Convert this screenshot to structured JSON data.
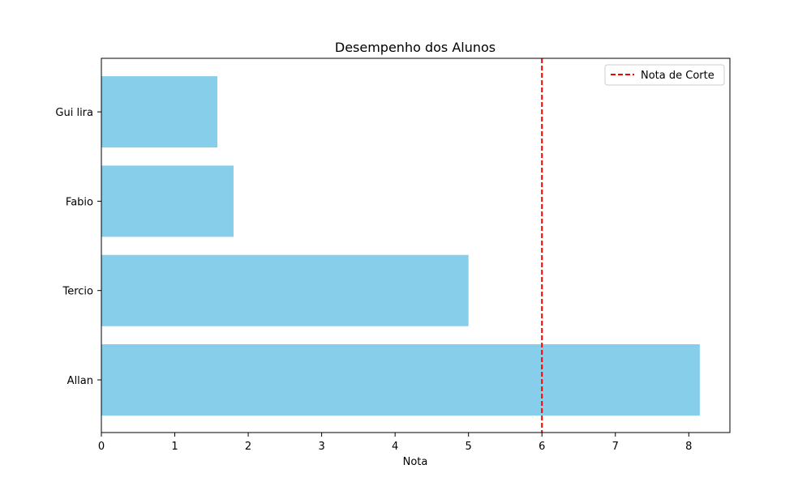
{
  "chart_data": {
    "type": "bar",
    "orientation": "horizontal",
    "title": "Desempenho dos Alunos",
    "xlabel": "Nota",
    "ylabel": "",
    "categories": [
      "Allan",
      "Tercio",
      "Fabio",
      "Gui lira"
    ],
    "values": [
      8.15,
      5.0,
      1.8,
      1.58
    ],
    "xlim": [
      0,
      8.56
    ],
    "xticks": [
      "0",
      "1",
      "2",
      "3",
      "4",
      "5",
      "6",
      "7",
      "8"
    ],
    "bar_color": "#87ceeb",
    "reference_line": {
      "label": "Nota de Corte",
      "value": 6,
      "color": "#ff0000",
      "style": "dashed"
    },
    "legend": {
      "position": "upper-right",
      "entries": [
        "Nota de Corte"
      ]
    },
    "grid": false
  }
}
